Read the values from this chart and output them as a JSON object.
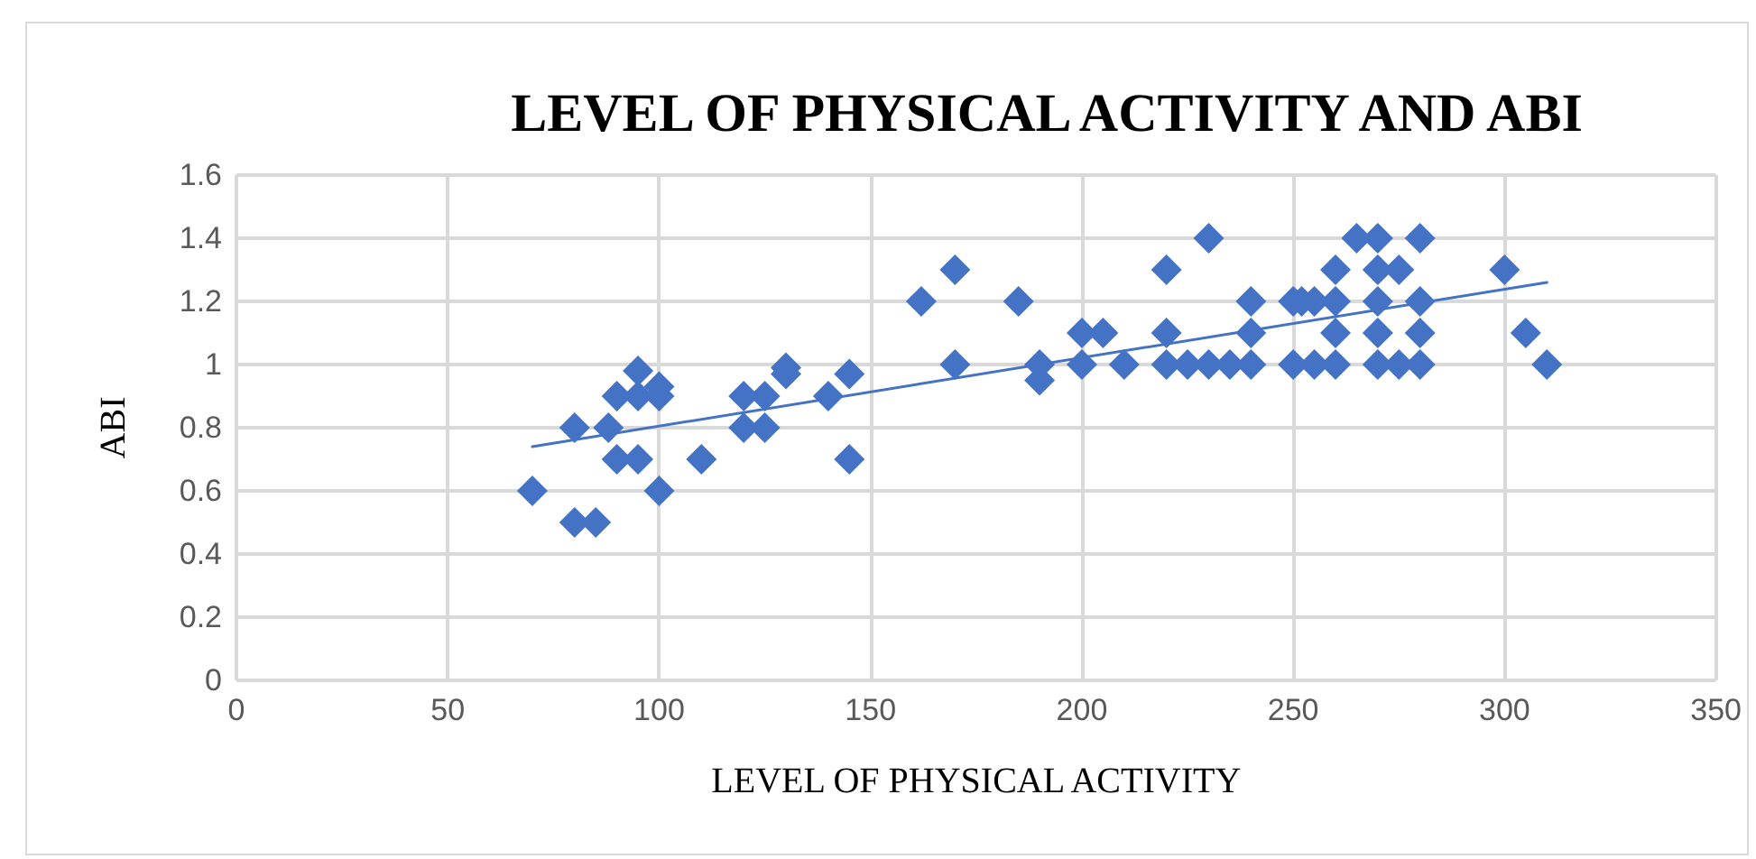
{
  "chart_data": {
    "type": "scatter",
    "title": "LEVEL OF PHYSICAL ACTIVITY AND ABI",
    "xlabel": "LEVEL OF PHYSICAL ACTIVITY",
    "ylabel": "ABI",
    "grid": true,
    "xlim": [
      0,
      350
    ],
    "xticks": [
      0,
      50,
      100,
      150,
      200,
      250,
      300,
      350
    ],
    "ylim": [
      0,
      1.6
    ],
    "yticks": [
      0,
      {
        "value": 0.2,
        "label": "0.2"
      },
      {
        "value": 0.4,
        "label": "0.4"
      },
      {
        "value": 0.6,
        "label": "0.6"
      },
      {
        "value": 0.8,
        "label": "0.8"
      },
      1,
      {
        "value": 1.2,
        "label": "1.2"
      },
      {
        "value": 1.4,
        "label": "1.4"
      },
      {
        "value": 1.6,
        "label": "1.6"
      }
    ],
    "series": [
      {
        "marker": "diamond",
        "color": "#4472c4",
        "x": [
          70,
          80,
          80,
          85,
          88,
          90,
          90,
          95,
          95,
          95,
          100,
          100,
          100,
          110,
          120,
          120,
          125,
          125,
          130,
          130,
          140,
          145,
          145,
          162,
          170,
          170,
          185,
          190,
          190,
          200,
          200,
          205,
          210,
          220,
          220,
          220,
          225,
          230,
          230,
          235,
          240,
          240,
          240,
          250,
          250,
          252,
          255,
          255,
          260,
          260,
          260,
          260,
          265,
          270,
          270,
          270,
          270,
          270,
          275,
          275,
          280,
          280,
          280,
          280,
          300,
          305,
          310
        ],
        "values": [
          0.6,
          0.8,
          0.5,
          0.5,
          0.8,
          0.9,
          0.7,
          0.98,
          0.9,
          0.7,
          0.93,
          0.9,
          0.6,
          0.7,
          0.9,
          0.8,
          0.9,
          0.8,
          0.99,
          0.97,
          0.9,
          0.97,
          0.7,
          1.2,
          1.3,
          1.0,
          1.2,
          1.0,
          0.95,
          1.1,
          1.0,
          1.1,
          1.0,
          1.3,
          1.1,
          1.0,
          1.0,
          1.4,
          1.0,
          1.0,
          1.2,
          1.1,
          1.0,
          1.2,
          1.0,
          1.2,
          1.2,
          1.0,
          1.3,
          1.2,
          1.1,
          1.0,
          1.4,
          1.4,
          1.3,
          1.2,
          1.1,
          1.0,
          1.3,
          1.0,
          1.4,
          1.2,
          1.1,
          1.0,
          1.3,
          1.1,
          1.0
        ]
      },
      {
        "type": "line",
        "color": "#4472c4",
        "x": [
          70,
          310
        ],
        "values": [
          0.74,
          1.26
        ]
      }
    ]
  }
}
